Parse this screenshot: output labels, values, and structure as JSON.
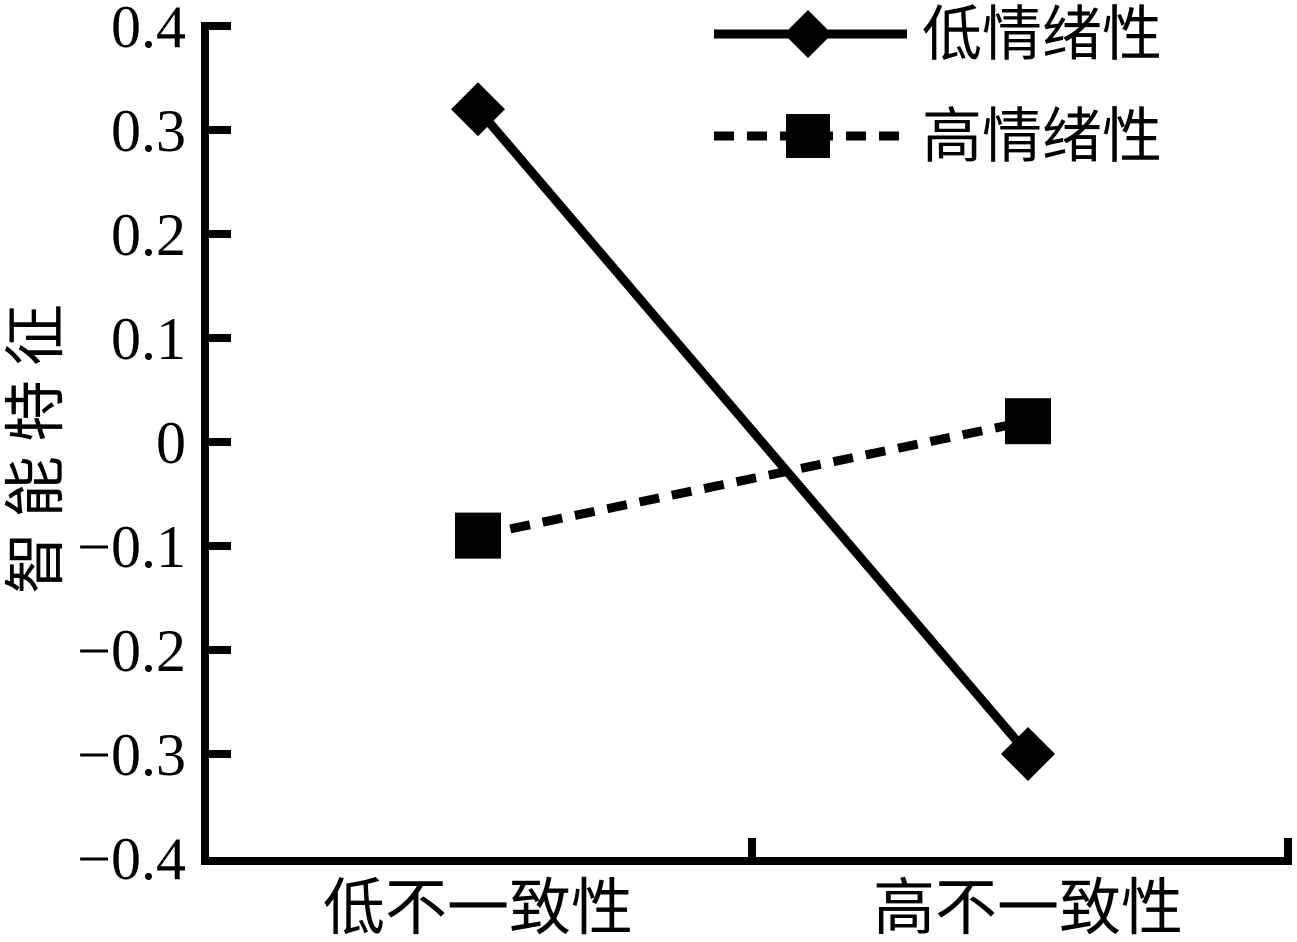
{
  "chart_data": {
    "type": "line",
    "title": "",
    "xlabel": "",
    "ylabel": "智能特征",
    "categories": [
      "低不一致性",
      "高不一致性"
    ],
    "series": [
      {
        "name": "低情绪性",
        "marker": "diamond",
        "line_style": "solid",
        "values": [
          0.32,
          -0.3
        ]
      },
      {
        "name": "高情绪性",
        "marker": "square",
        "line_style": "dashed",
        "values": [
          -0.09,
          0.02
        ]
      }
    ],
    "ylim": [
      -0.4,
      0.4
    ],
    "ytick_step": 0.1,
    "ytick_values": [
      0.4,
      0.3,
      0.2,
      0.1,
      0,
      -0.1,
      -0.2,
      -0.3,
      -0.4
    ],
    "ytick_labels": [
      "0.4",
      "0.3",
      "0.2",
      "0.1",
      "0",
      "−0.1",
      "−0.2",
      "−0.3",
      "−0.4"
    ],
    "grid": false,
    "legend_position": "top-right",
    "colors": {
      "foreground": "#000000",
      "background": "#ffffff"
    }
  }
}
